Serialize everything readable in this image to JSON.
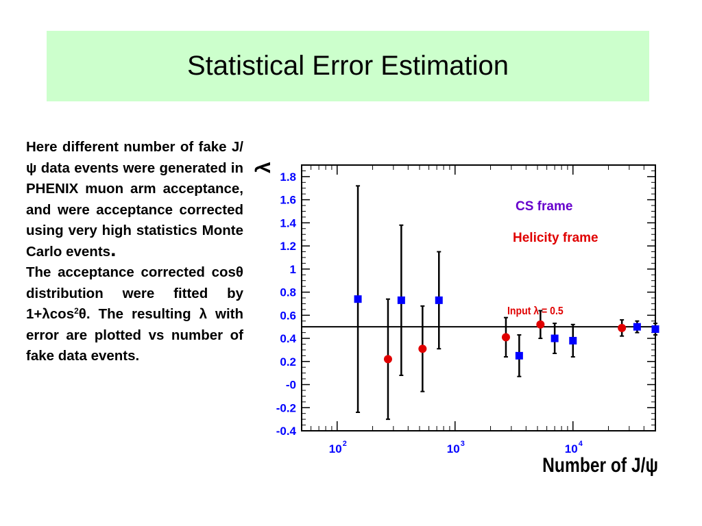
{
  "slide": {
    "title": "Statistical Error Estimation",
    "desc_para1_a": "Here different number of fake J/ψ data events were generated in PHENIX muon arm acceptance, and were acceptance corrected using very high statistics Monte Carlo events",
    "desc_para1_b": ".",
    "desc_para2_a": "The acceptance corrected cosθ distribution were fitted by 1+λcos",
    "desc_para2_sup": "2",
    "desc_para2_b": "θ. The resulting λ with error are plotted vs number of fake data events."
  },
  "chart_data": {
    "type": "scatter",
    "xscale": "log",
    "xlim": [
      50,
      50000
    ],
    "ylim": [
      -0.4,
      1.9
    ],
    "ylabel": "λ",
    "xlabel": "Number of J/ψ",
    "xticks": [
      {
        "base": "10",
        "exp": "2",
        "value": 100
      },
      {
        "base": "10",
        "exp": "3",
        "value": 1000
      },
      {
        "base": "10",
        "exp": "4",
        "value": 10000
      }
    ],
    "yticks": [
      "1.8",
      "1.6",
      "1.4",
      "1.2",
      "1",
      "0.8",
      "0.6",
      "0.4",
      "0.2",
      "-0",
      "-0.2",
      "-0.4"
    ],
    "ytick_values": [
      1.8,
      1.6,
      1.4,
      1.2,
      1.0,
      0.8,
      0.6,
      0.4,
      0.2,
      0,
      -0.2,
      -0.4
    ],
    "grid": false,
    "reference_line": {
      "y": 0.5,
      "label": "Input λ = 0.5",
      "color": "#e00000"
    },
    "series": [
      {
        "name": "CS frame",
        "marker": "square",
        "color": "#0000ff",
        "label_color": "#6600cc",
        "points": [
          {
            "x": 150,
            "y": 0.74,
            "err": 0.98
          },
          {
            "x": 350,
            "y": 0.73,
            "err": 0.65
          },
          {
            "x": 730,
            "y": 0.73,
            "err": 0.42
          },
          {
            "x": 3500,
            "y": 0.25,
            "err": 0.18
          },
          {
            "x": 7000,
            "y": 0.4,
            "err": 0.13
          },
          {
            "x": 10000,
            "y": 0.38,
            "err": 0.14
          },
          {
            "x": 35000,
            "y": 0.5,
            "err": 0.05
          },
          {
            "x": 50000,
            "y": 0.48,
            "err": 0.05
          }
        ]
      },
      {
        "name": "Helicity frame",
        "marker": "circle",
        "color": "#e00000",
        "label_color": "#e00000",
        "points": [
          {
            "x": 270,
            "y": 0.22,
            "err": 0.52
          },
          {
            "x": 530,
            "y": 0.31,
            "err": 0.37
          },
          {
            "x": 2700,
            "y": 0.41,
            "err": 0.17
          },
          {
            "x": 5300,
            "y": 0.52,
            "err": 0.12
          },
          {
            "x": 26000,
            "y": 0.49,
            "err": 0.07
          }
        ]
      }
    ]
  }
}
